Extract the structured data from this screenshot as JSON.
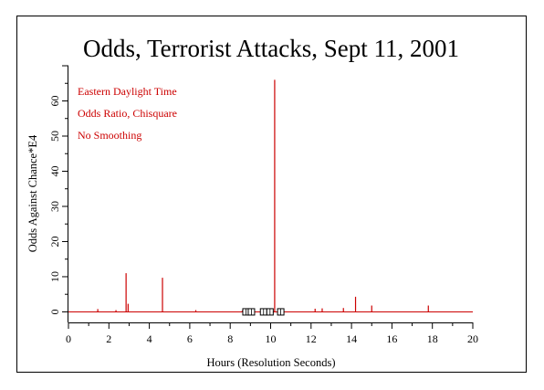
{
  "chart_data": {
    "type": "line",
    "title": "Odds, Terrorist Attacks, Sept 11, 2001",
    "xlabel": "Hours (Resolution Seconds)",
    "ylabel": "Odds Against Chance*E4",
    "xlim": [
      0,
      20
    ],
    "ylim": [
      -3,
      70
    ],
    "x_ticks": [
      0,
      2,
      4,
      6,
      8,
      10,
      12,
      14,
      16,
      18,
      20
    ],
    "y_ticks": [
      0,
      10,
      20,
      30,
      40,
      50,
      60
    ],
    "annotations": [
      "Eastern Daylight Time",
      "Odds Ratio, Chisquare",
      "No Smoothing"
    ],
    "series": [
      {
        "color": "#cc0000",
        "spikes": [
          {
            "x": 1.45,
            "y": 0.8
          },
          {
            "x": 2.35,
            "y": 0.5
          },
          {
            "x": 2.85,
            "y": 11.0
          },
          {
            "x": 2.95,
            "y": 2.3
          },
          {
            "x": 4.65,
            "y": 9.7
          },
          {
            "x": 6.3,
            "y": 0.5
          },
          {
            "x": 8.6,
            "y": 0.4
          },
          {
            "x": 10.2,
            "y": 66.0
          },
          {
            "x": 10.6,
            "y": 0.5
          },
          {
            "x": 12.2,
            "y": 0.9
          },
          {
            "x": 12.55,
            "y": 1.0
          },
          {
            "x": 13.6,
            "y": 1.1
          },
          {
            "x": 14.2,
            "y": 4.3
          },
          {
            "x": 15.0,
            "y": 1.8
          },
          {
            "x": 17.8,
            "y": 1.8
          }
        ]
      }
    ],
    "event_markers": {
      "shape": "square",
      "x": [
        8.78,
        9.05,
        9.65,
        9.97,
        10.5
      ],
      "y": 0
    },
    "grid": false
  }
}
